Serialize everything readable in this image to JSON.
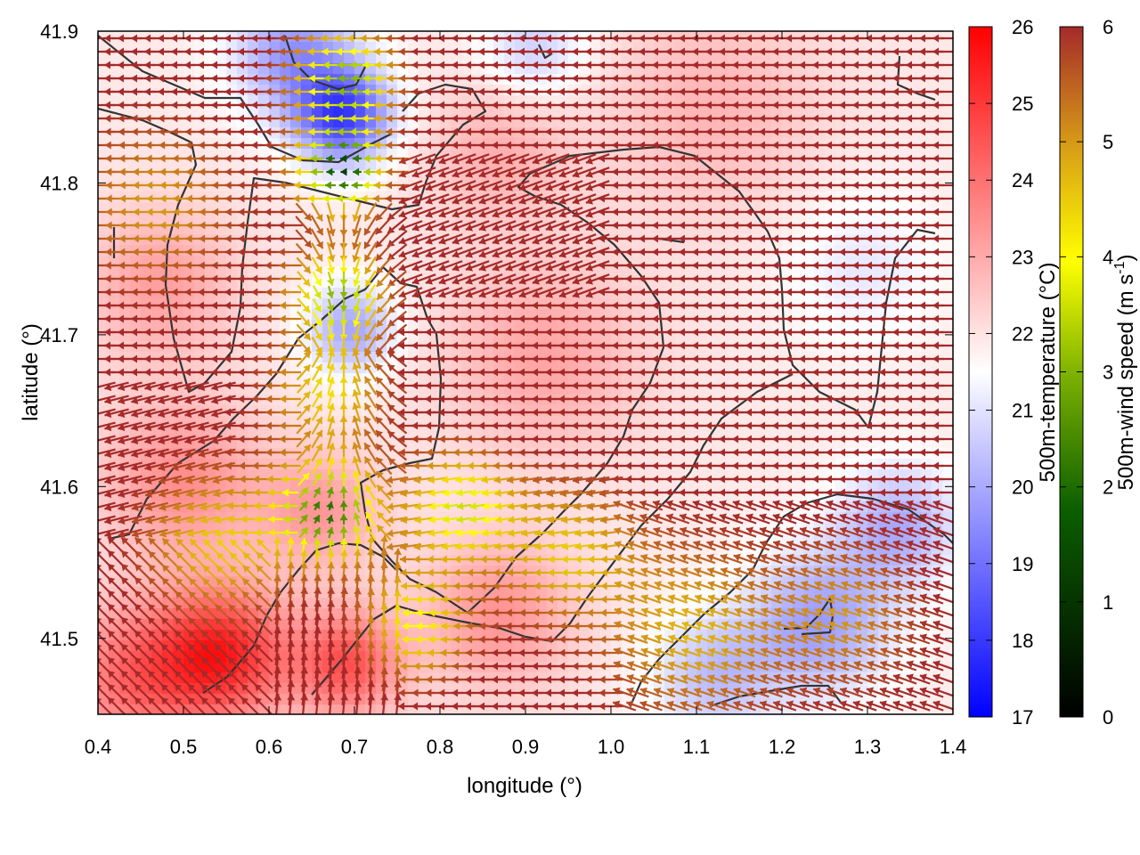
{
  "chart_data": {
    "type": "heatmap",
    "xlabel": "longitude (°)",
    "ylabel": "latitude (°)",
    "xlim": [
      0.4,
      1.4
    ],
    "ylim": [
      41.45,
      41.9
    ],
    "x_ticks": [
      "0.4",
      "0.5",
      "0.6",
      "0.7",
      "0.8",
      "0.9",
      "1.0",
      "1.1",
      "1.2",
      "1.3",
      "1.4"
    ],
    "y_ticks": [
      "41.5",
      "41.6",
      "41.7",
      "41.8",
      "41.9"
    ],
    "grid": false,
    "temperature": {
      "label": "500m-temperature (°C)",
      "range": [
        17,
        26
      ],
      "ticks": [
        "17",
        "18",
        "19",
        "20",
        "21",
        "22",
        "23",
        "24",
        "25",
        "26"
      ],
      "colors": [
        "#0000ff",
        "#ffffff",
        "#ff0000"
      ]
    },
    "wind_speed": {
      "label_main": "500m-wind speed (m s",
      "label_sup": "-1",
      "label_end": ")",
      "range": [
        0,
        6
      ],
      "ticks": [
        "0",
        "1",
        "2",
        "3",
        "4",
        "5",
        "6"
      ],
      "colors": [
        "#000000",
        "#0b5e00",
        "#7fb300",
        "#ffff00",
        "#d79b17",
        "#a52a2a"
      ]
    }
  }
}
